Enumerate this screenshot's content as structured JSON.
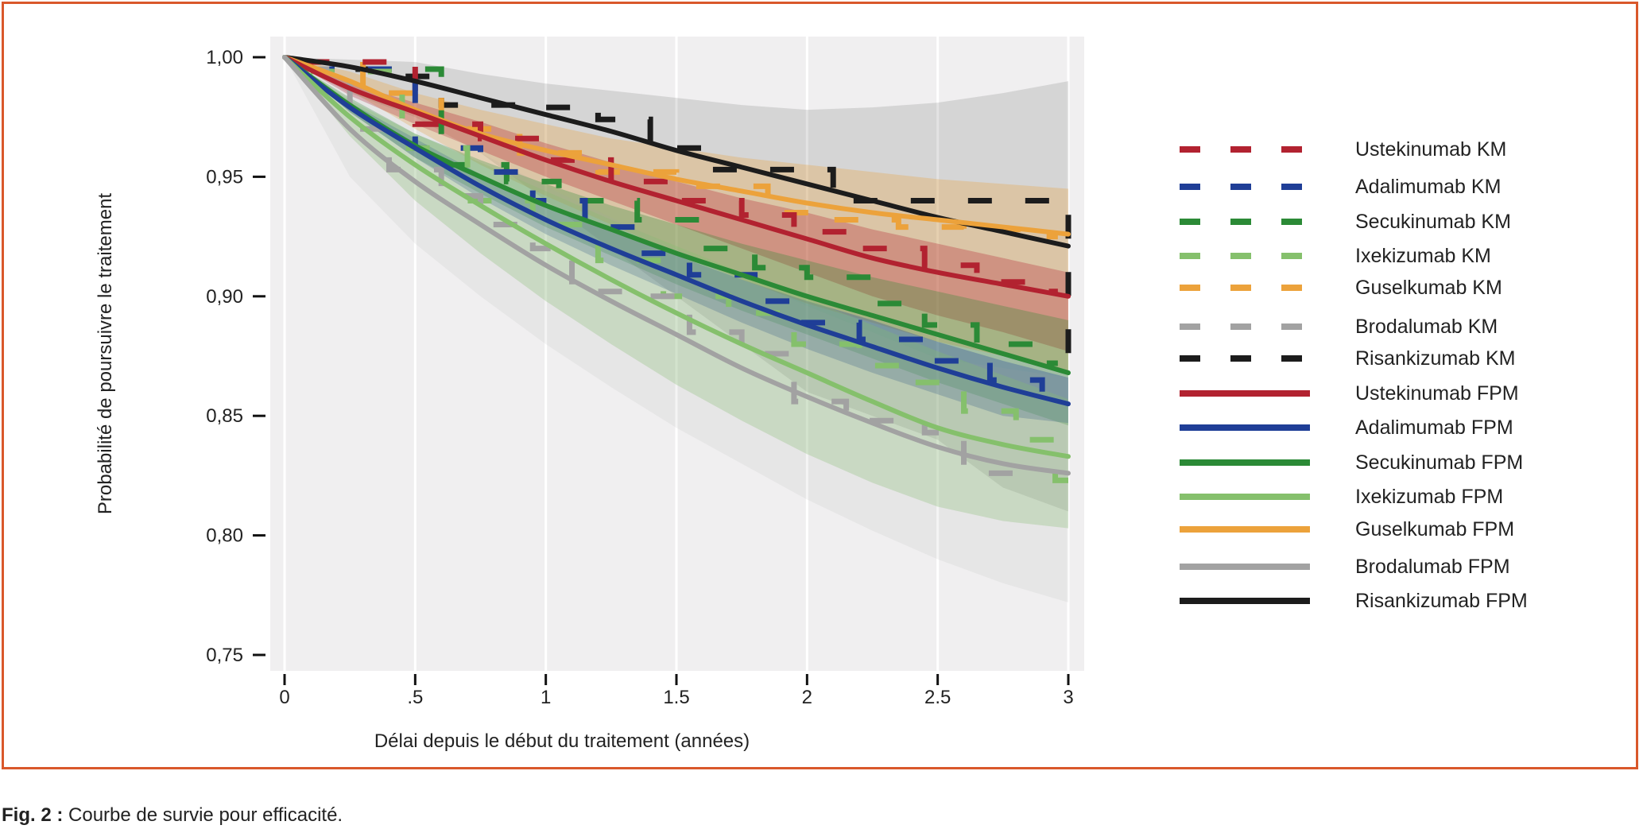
{
  "caption": {
    "label": "Fig. 2 :",
    "text": "Courbe de survie pour efficacité."
  },
  "colors": {
    "Ustekinumab": "#b22230",
    "Adalimumab": "#1f3e97",
    "Secukinumab": "#2b8a36",
    "Ixekizumab": "#85c06c",
    "Guselkumab": "#eca23b",
    "Brodalumab": "#a2a2a2",
    "Risankizumab": "#1c1c1c",
    "panel": "#f0eff0",
    "frame": "#d9582b"
  },
  "chart_data": {
    "type": "line",
    "title": "",
    "xlabel": "Délai depuis le début du traitement (années)",
    "ylabel": "Probabilité de poursuivre le traitement",
    "xlim": [
      0,
      3
    ],
    "ylim": [
      0.75,
      1.0
    ],
    "xticks": [
      0,
      0.5,
      1,
      1.5,
      2,
      2.5,
      3
    ],
    "xtick_labels": [
      "0",
      ".5",
      "1",
      "1.5",
      "2",
      "2.5",
      "3"
    ],
    "yticks": [
      1.0,
      0.95,
      0.9,
      0.85,
      0.8,
      0.75
    ],
    "ytick_labels": [
      "1,00",
      "0,95",
      "0,90",
      "0,85",
      "0,80",
      "0,75"
    ],
    "grid": true,
    "legend_position": "right",
    "legend": [
      {
        "label": "Ustekinumab KM",
        "drug": "Ustekinumab",
        "style": "dashed"
      },
      {
        "label": "Adalimumab KM",
        "drug": "Adalimumab",
        "style": "dashed"
      },
      {
        "label": "Secukinumab KM",
        "drug": "Secukinumab",
        "style": "dashed"
      },
      {
        "label": "Ixekizumab KM",
        "drug": "Ixekizumab",
        "style": "dashed"
      },
      {
        "label": "Guselkumab KM",
        "drug": "Guselkumab",
        "style": "dashed"
      },
      {
        "label": "Brodalumab KM",
        "drug": "Brodalumab",
        "style": "dashed"
      },
      {
        "label": "Risankizumab KM",
        "drug": "Risankizumab",
        "style": "dashed"
      },
      {
        "label": "Ustekinumab FPM",
        "drug": "Ustekinumab",
        "style": "solid"
      },
      {
        "label": "Adalimumab FPM",
        "drug": "Adalimumab",
        "style": "solid"
      },
      {
        "label": "Secukinumab FPM",
        "drug": "Secukinumab",
        "style": "solid"
      },
      {
        "label": "Ixekizumab FPM",
        "drug": "Ixekizumab",
        "style": "solid"
      },
      {
        "label": "Guselkumab FPM",
        "drug": "Guselkumab",
        "style": "solid"
      },
      {
        "label": "Brodalumab FPM",
        "drug": "Brodalumab",
        "style": "solid"
      },
      {
        "label": "Risankizumab FPM",
        "drug": "Risankizumab",
        "style": "solid"
      }
    ],
    "x": [
      0,
      0.25,
      0.5,
      0.75,
      1,
      1.25,
      1.5,
      1.75,
      2,
      2.25,
      2.5,
      2.75,
      3
    ],
    "series": [
      {
        "name": "Risankizumab FPM",
        "drug": "Risankizumab",
        "values": [
          1.0,
          0.996,
          0.99,
          0.983,
          0.976,
          0.969,
          0.961,
          0.954,
          0.947,
          0.94,
          0.933,
          0.927,
          0.921
        ],
        "ci_lower": [
          1.0,
          0.985,
          0.975,
          0.96,
          0.94,
          0.92,
          0.9,
          0.88,
          0.86,
          0.85,
          0.84,
          0.82,
          0.81
        ],
        "ci_upper": [
          1.0,
          0.999,
          0.998,
          0.993,
          0.989,
          0.986,
          0.983,
          0.98,
          0.978,
          0.979,
          0.981,
          0.985,
          0.99
        ]
      },
      {
        "name": "Guselkumab FPM",
        "drug": "Guselkumab",
        "values": [
          1.0,
          0.99,
          0.978,
          0.968,
          0.961,
          0.955,
          0.949,
          0.944,
          0.939,
          0.935,
          0.932,
          0.929,
          0.926
        ],
        "ci_lower": [
          1.0,
          0.986,
          0.97,
          0.955,
          0.942,
          0.93,
          0.918,
          0.907,
          0.897,
          0.889,
          0.881,
          0.875,
          0.868
        ],
        "ci_upper": [
          1.0,
          0.994,
          0.985,
          0.978,
          0.972,
          0.966,
          0.962,
          0.958,
          0.955,
          0.952,
          0.949,
          0.947,
          0.945
        ]
      },
      {
        "name": "Ustekinumab FPM",
        "drug": "Ustekinumab",
        "values": [
          1.0,
          0.987,
          0.977,
          0.967,
          0.957,
          0.948,
          0.94,
          0.932,
          0.924,
          0.916,
          0.91,
          0.905,
          0.9
        ],
        "ci_lower": [
          1.0,
          0.984,
          0.972,
          0.961,
          0.95,
          0.94,
          0.93,
          0.92,
          0.91,
          0.9,
          0.892,
          0.885,
          0.877
        ],
        "ci_upper": [
          1.0,
          0.989,
          0.981,
          0.973,
          0.964,
          0.956,
          0.948,
          0.941,
          0.935,
          0.928,
          0.922,
          0.916,
          0.91
        ]
      },
      {
        "name": "Secukinumab FPM",
        "drug": "Secukinumab",
        "values": [
          1.0,
          0.98,
          0.963,
          0.95,
          0.938,
          0.928,
          0.918,
          0.909,
          0.9,
          0.892,
          0.884,
          0.876,
          0.868
        ],
        "ci_lower": [
          1.0,
          0.977,
          0.958,
          0.943,
          0.929,
          0.917,
          0.905,
          0.894,
          0.884,
          0.874,
          0.864,
          0.855,
          0.846
        ],
        "ci_upper": [
          1.0,
          0.983,
          0.968,
          0.957,
          0.947,
          0.938,
          0.93,
          0.922,
          0.915,
          0.908,
          0.902,
          0.896,
          0.89
        ]
      },
      {
        "name": "Adalimumab FPM",
        "drug": "Adalimumab",
        "values": [
          1.0,
          0.979,
          0.962,
          0.946,
          0.932,
          0.92,
          0.909,
          0.898,
          0.888,
          0.879,
          0.87,
          0.862,
          0.855
        ],
        "ci_lower": [
          1.0,
          0.977,
          0.958,
          0.941,
          0.926,
          0.913,
          0.901,
          0.889,
          0.878,
          0.868,
          0.859,
          0.85,
          0.847
        ],
        "ci_upper": [
          1.0,
          0.981,
          0.966,
          0.951,
          0.938,
          0.927,
          0.917,
          0.907,
          0.898,
          0.89,
          0.881,
          0.873,
          0.866
        ]
      },
      {
        "name": "Ixekizumab FPM",
        "drug": "Ixekizumab",
        "values": [
          1.0,
          0.975,
          0.955,
          0.938,
          0.922,
          0.907,
          0.893,
          0.88,
          0.868,
          0.856,
          0.845,
          0.838,
          0.833
        ],
        "ci_lower": [
          1.0,
          0.967,
          0.94,
          0.918,
          0.898,
          0.88,
          0.863,
          0.848,
          0.834,
          0.822,
          0.812,
          0.806,
          0.803
        ],
        "ci_upper": [
          1.0,
          0.982,
          0.968,
          0.956,
          0.944,
          0.932,
          0.921,
          0.91,
          0.899,
          0.888,
          0.877,
          0.867,
          0.857
        ]
      },
      {
        "name": "Brodalumab FPM",
        "drug": "Brodalumab",
        "values": [
          1.0,
          0.97,
          0.948,
          0.93,
          0.913,
          0.898,
          0.884,
          0.87,
          0.858,
          0.847,
          0.837,
          0.83,
          0.826
        ],
        "ci_lower": [
          1.0,
          0.95,
          0.922,
          0.9,
          0.88,
          0.862,
          0.845,
          0.83,
          0.815,
          0.802,
          0.79,
          0.78,
          0.772
        ],
        "ci_upper": [
          1.0,
          0.989,
          0.975,
          0.96,
          0.946,
          0.933,
          0.92,
          0.908,
          0.896,
          0.885,
          0.874,
          0.87,
          0.866
        ]
      }
    ],
    "km_series": [
      {
        "name": "Risankizumab KM",
        "drug": "Risankizumab",
        "x": [
          0.08,
          0.2,
          0.4,
          0.6,
          0.9,
          1.2,
          1.4,
          1.6,
          2.1,
          2.4,
          2.65,
          3.0
        ],
        "y": [
          0.998,
          0.995,
          0.992,
          0.98,
          0.979,
          0.974,
          0.962,
          0.953,
          0.94,
          0.94,
          0.94,
          0.872
        ]
      },
      {
        "name": "Guselkumab KM",
        "drug": "Guselkumab",
        "x": [
          0.08,
          0.3,
          0.6,
          0.9,
          1.2,
          1.5,
          1.85,
          2.1,
          2.35,
          2.6,
          2.9
        ],
        "y": [
          0.998,
          0.985,
          0.97,
          0.96,
          0.952,
          0.946,
          0.935,
          0.932,
          0.929,
          0.928,
          0.925
        ]
      },
      {
        "name": "Ustekinumab KM",
        "drug": "Ustekinumab",
        "x": [
          0.08,
          0.5,
          0.75,
          1,
          1.25,
          1.5,
          1.75,
          1.95,
          2.2,
          2.45,
          2.65,
          2.9
        ],
        "y": [
          0.998,
          0.972,
          0.966,
          0.957,
          0.948,
          0.94,
          0.934,
          0.927,
          0.92,
          0.913,
          0.906,
          0.902
        ]
      },
      {
        "name": "Secukinumab KM",
        "drug": "Secukinumab",
        "x": [
          0.1,
          0.6,
          0.85,
          1.05,
          1.35,
          1.6,
          1.8,
          2.0,
          2.25,
          2.45,
          2.65,
          2.9
        ],
        "y": [
          0.995,
          0.955,
          0.948,
          0.94,
          0.932,
          0.92,
          0.912,
          0.908,
          0.897,
          0.888,
          0.88,
          0.872
        ]
      },
      {
        "name": "Adalimumab KM",
        "drug": "Adalimumab",
        "x": [
          0.1,
          0.5,
          0.75,
          0.95,
          1.15,
          1.35,
          1.55,
          1.8,
          1.95,
          2.2,
          2.45,
          2.7,
          2.9
        ],
        "y": [
          0.995,
          0.962,
          0.952,
          0.94,
          0.929,
          0.918,
          0.909,
          0.898,
          0.889,
          0.882,
          0.873,
          0.865,
          0.857
        ]
      },
      {
        "name": "Ixekizumab KM",
        "drug": "Ixekizumab",
        "x": [
          0.1,
          0.45,
          0.7,
          0.95,
          1.2,
          1.45,
          1.7,
          1.95,
          2.2,
          2.4,
          2.6,
          2.8,
          2.95
        ],
        "y": [
          0.994,
          0.962,
          0.94,
          0.93,
          0.915,
          0.9,
          0.893,
          0.88,
          0.871,
          0.864,
          0.852,
          0.84,
          0.823
        ]
      },
      {
        "name": "Brodalumab KM",
        "drug": "Brodalumab",
        "x": [
          0.08,
          0.25,
          0.4,
          0.6,
          0.75,
          0.95,
          1.1,
          1.35,
          1.55,
          1.75,
          1.95,
          2.15,
          2.45,
          2.6,
          2.85
        ],
        "y": [
          0.995,
          0.97,
          0.953,
          0.942,
          0.93,
          0.92,
          0.902,
          0.9,
          0.885,
          0.876,
          0.856,
          0.848,
          0.843,
          0.826,
          0.826
        ]
      }
    ]
  }
}
